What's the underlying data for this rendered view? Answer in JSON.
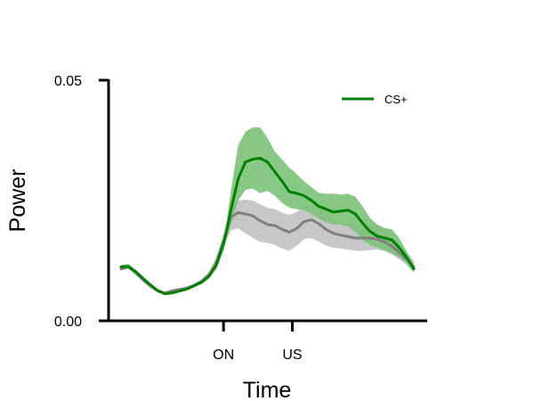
{
  "chart_data": {
    "type": "line",
    "title": "",
    "xlabel": "Time",
    "ylabel": "Power",
    "xlim": [
      0,
      10
    ],
    "ylim": [
      0,
      0.05
    ],
    "y_ticks": [
      {
        "value": 0,
        "label": "0.00"
      },
      {
        "value": 0.05,
        "label": "0.05"
      }
    ],
    "x_ticks": [
      {
        "value": 3.5,
        "label": "ON"
      },
      {
        "value": 5.85,
        "label": "US"
      }
    ],
    "grid": false,
    "legend_position": "top-right",
    "x": [
      0,
      0.25,
      0.5,
      0.75,
      1.0,
      1.25,
      1.5,
      1.75,
      2.0,
      2.25,
      2.5,
      2.75,
      3.0,
      3.25,
      3.5,
      3.6,
      3.75,
      4.0,
      4.25,
      4.5,
      4.75,
      5.0,
      5.25,
      5.5,
      5.75,
      6.0,
      6.25,
      6.5,
      6.75,
      7.0,
      7.25,
      7.5,
      7.75,
      8.0,
      8.25,
      8.5,
      8.75,
      9.0,
      9.25,
      9.5,
      9.75,
      10.0
    ],
    "series": [
      {
        "name": "CS+",
        "color": "#008000",
        "band_color": "#7cc17a",
        "values": [
          0.0112,
          0.0113,
          0.0102,
          0.0088,
          0.0075,
          0.0063,
          0.0056,
          0.0058,
          0.0062,
          0.0066,
          0.0073,
          0.008,
          0.0092,
          0.0115,
          0.016,
          0.0185,
          0.023,
          0.0295,
          0.033,
          0.0336,
          0.0338,
          0.033,
          0.031,
          0.029,
          0.0268,
          0.0265,
          0.026,
          0.025,
          0.0238,
          0.0232,
          0.0226,
          0.0228,
          0.023,
          0.0222,
          0.0203,
          0.0186,
          0.0176,
          0.0172,
          0.0168,
          0.0152,
          0.0132,
          0.0108
        ],
        "lower": [
          0.0108,
          0.0109,
          0.0098,
          0.0084,
          0.0072,
          0.006,
          0.0054,
          0.0056,
          0.006,
          0.0064,
          0.007,
          0.0077,
          0.0088,
          0.0108,
          0.0145,
          0.0168,
          0.02,
          0.025,
          0.0272,
          0.0275,
          0.0265,
          0.027,
          0.026,
          0.0245,
          0.0235,
          0.0232,
          0.023,
          0.0222,
          0.0212,
          0.0205,
          0.02,
          0.02,
          0.0196,
          0.0185,
          0.0168,
          0.0158,
          0.0152,
          0.0146,
          0.014,
          0.0132,
          0.012,
          0.01
        ],
        "upper": [
          0.0116,
          0.0118,
          0.0106,
          0.0092,
          0.0078,
          0.0066,
          0.0058,
          0.006,
          0.0064,
          0.0068,
          0.0076,
          0.0083,
          0.0096,
          0.0122,
          0.0175,
          0.0202,
          0.027,
          0.0365,
          0.0393,
          0.0402,
          0.0402,
          0.038,
          0.0352,
          0.0335,
          0.0318,
          0.0305,
          0.029,
          0.0278,
          0.0266,
          0.0264,
          0.0264,
          0.0262,
          0.0264,
          0.0258,
          0.0238,
          0.0214,
          0.02,
          0.0193,
          0.019,
          0.0172,
          0.0145,
          0.0116
        ]
      },
      {
        "name": "",
        "color": "#808080",
        "band_color": "#c4c4c4",
        "values": [
          0.0108,
          0.0112,
          0.01,
          0.0085,
          0.0072,
          0.0062,
          0.0058,
          0.0062,
          0.0065,
          0.0068,
          0.0074,
          0.0082,
          0.0095,
          0.012,
          0.0165,
          0.0185,
          0.0215,
          0.0225,
          0.0222,
          0.0218,
          0.0208,
          0.02,
          0.0198,
          0.019,
          0.0184,
          0.0192,
          0.0206,
          0.021,
          0.0202,
          0.019,
          0.0182,
          0.0178,
          0.0175,
          0.0172,
          0.0172,
          0.0172,
          0.017,
          0.0164,
          0.0155,
          0.0142,
          0.0128,
          0.0112
        ],
        "lower": [
          0.0104,
          0.0108,
          0.0096,
          0.0082,
          0.0069,
          0.0059,
          0.0055,
          0.0059,
          0.0062,
          0.0065,
          0.0071,
          0.0078,
          0.0088,
          0.011,
          0.015,
          0.0168,
          0.0188,
          0.0192,
          0.0182,
          0.0172,
          0.0164,
          0.0162,
          0.0158,
          0.015,
          0.0146,
          0.0156,
          0.017,
          0.0172,
          0.0165,
          0.0156,
          0.0152,
          0.015,
          0.0148,
          0.0146,
          0.0146,
          0.0147,
          0.0148,
          0.0146,
          0.0138,
          0.0128,
          0.0116,
          0.01
        ],
        "upper": [
          0.0112,
          0.0116,
          0.0104,
          0.0088,
          0.0075,
          0.0065,
          0.0061,
          0.0065,
          0.0068,
          0.0071,
          0.0077,
          0.0086,
          0.0102,
          0.0132,
          0.018,
          0.0205,
          0.024,
          0.025,
          0.0252,
          0.025,
          0.0242,
          0.0235,
          0.0232,
          0.0225,
          0.022,
          0.0226,
          0.0238,
          0.0242,
          0.0236,
          0.0222,
          0.0212,
          0.0206,
          0.0202,
          0.0198,
          0.0198,
          0.0198,
          0.0196,
          0.019,
          0.018,
          0.0164,
          0.0144,
          0.0124
        ]
      }
    ]
  }
}
